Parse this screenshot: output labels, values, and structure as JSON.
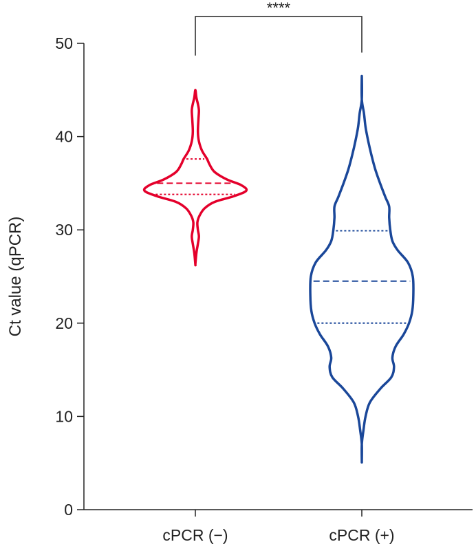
{
  "chart_data": {
    "type": "violin",
    "ylabel": "Ct value (qPCR)",
    "ylim": [
      0,
      50
    ],
    "yticks": [
      0,
      10,
      20,
      30,
      40,
      50
    ],
    "categories": [
      "cPCR (−)",
      "cPCR (+)"
    ],
    "significance": {
      "label": "****",
      "between": [
        "cPCR (−)",
        "cPCR (+)"
      ]
    },
    "series": [
      {
        "category": "cPCR (−)",
        "color": "#e4002b",
        "min": 26.3,
        "max": 45.0,
        "q1": 33.8,
        "median": 35.0,
        "q3": 37.6,
        "density": [
          [
            26.3,
            0.0
          ],
          [
            27.5,
            0.02
          ],
          [
            28.5,
            0.05
          ],
          [
            29.3,
            0.07
          ],
          [
            30.0,
            0.05
          ],
          [
            30.8,
            0.04
          ],
          [
            31.5,
            0.08
          ],
          [
            32.3,
            0.18
          ],
          [
            33.0,
            0.38
          ],
          [
            33.6,
            0.75
          ],
          [
            34.2,
            1.0
          ],
          [
            34.8,
            0.9
          ],
          [
            35.4,
            0.62
          ],
          [
            36.2,
            0.38
          ],
          [
            37.0,
            0.28
          ],
          [
            37.6,
            0.23
          ],
          [
            38.5,
            0.13
          ],
          [
            39.5,
            0.07
          ],
          [
            40.5,
            0.05
          ],
          [
            41.8,
            0.06
          ],
          [
            42.8,
            0.07
          ],
          [
            43.5,
            0.05
          ],
          [
            44.2,
            0.02
          ],
          [
            45.0,
            0.0
          ]
        ]
      },
      {
        "category": "cPCR (+)",
        "color": "#1a4799",
        "min": 5.2,
        "max": 46.5,
        "q1": 20.0,
        "median": 24.5,
        "q3": 29.9,
        "density": [
          [
            5.2,
            0.0
          ],
          [
            7.0,
            0.0
          ],
          [
            8.5,
            0.03
          ],
          [
            10.0,
            0.07
          ],
          [
            11.5,
            0.15
          ],
          [
            13.0,
            0.35
          ],
          [
            14.2,
            0.55
          ],
          [
            15.3,
            0.6
          ],
          [
            16.3,
            0.57
          ],
          [
            17.5,
            0.63
          ],
          [
            18.8,
            0.78
          ],
          [
            20.0,
            0.88
          ],
          [
            21.3,
            0.94
          ],
          [
            23.0,
            0.96
          ],
          [
            25.0,
            0.95
          ],
          [
            26.5,
            0.86
          ],
          [
            27.8,
            0.67
          ],
          [
            28.8,
            0.57
          ],
          [
            30.0,
            0.53
          ],
          [
            31.3,
            0.51
          ],
          [
            32.5,
            0.51
          ],
          [
            33.5,
            0.44
          ],
          [
            35.0,
            0.34
          ],
          [
            36.5,
            0.25
          ],
          [
            38.0,
            0.18
          ],
          [
            39.5,
            0.12
          ],
          [
            41.0,
            0.07
          ],
          [
            42.5,
            0.04
          ],
          [
            44.0,
            0.0
          ],
          [
            46.5,
            0.0
          ]
        ]
      }
    ]
  }
}
